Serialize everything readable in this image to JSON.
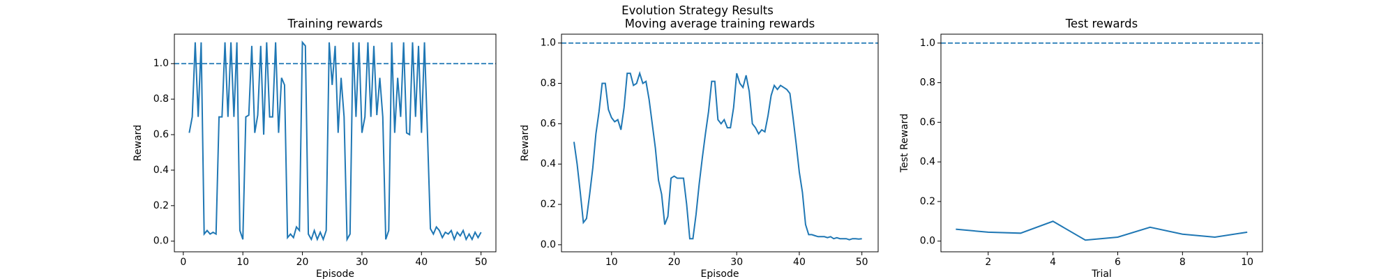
{
  "title": "Evolution Strategy Results",
  "chart_data": [
    {
      "type": "line",
      "title": "Training rewards",
      "xlabel": "Episode",
      "ylabel": "Reward",
      "color": "#1f77b4",
      "x": [
        1,
        1.5,
        2,
        2.5,
        3,
        3.5,
        4,
        4.5,
        5,
        5.5,
        6,
        6.5,
        7,
        7.5,
        8,
        8.5,
        9,
        9.5,
        10,
        10.5,
        11,
        11.5,
        12,
        12.5,
        13,
        13.5,
        14,
        14.5,
        15,
        15.5,
        16,
        16.5,
        17,
        17.5,
        18,
        18.5,
        19,
        19.5,
        20,
        20.5,
        21,
        21.5,
        22,
        22.5,
        23,
        23.5,
        24,
        24.5,
        25,
        25.5,
        26,
        26.5,
        27,
        27.5,
        28,
        28.5,
        29,
        29.5,
        30,
        30.5,
        31,
        31.5,
        32,
        32.5,
        33,
        33.5,
        34,
        34.5,
        35,
        35.5,
        36,
        36.5,
        37,
        37.5,
        38,
        38.5,
        39,
        39.5,
        40,
        40.5,
        41,
        41.5,
        42,
        42.5,
        43,
        43.5,
        44,
        44.5,
        45,
        45.5,
        46,
        46.5,
        47,
        47.5,
        48,
        48.5,
        49,
        49.5,
        50
      ],
      "values": [
        0.61,
        0.7,
        1.12,
        0.7,
        1.12,
        0.04,
        0.06,
        0.04,
        0.05,
        0.04,
        0.7,
        0.7,
        1.12,
        0.7,
        1.12,
        0.7,
        1.12,
        0.06,
        0.01,
        0.7,
        0.71,
        1.1,
        0.61,
        0.71,
        1.1,
        0.6,
        1.12,
        0.7,
        0.7,
        1.12,
        0.61,
        0.92,
        0.88,
        0.02,
        0.04,
        0.02,
        0.08,
        0.06,
        1.12,
        1.1,
        0.04,
        0.01,
        0.06,
        0.01,
        0.05,
        0.01,
        0.06,
        1.12,
        0.88,
        1.1,
        0.61,
        0.92,
        0.7,
        0.01,
        0.04,
        1.12,
        0.7,
        1.12,
        0.61,
        0.7,
        1.12,
        0.7,
        1.1,
        0.71,
        0.92,
        0.7,
        0.01,
        0.06,
        1.12,
        0.61,
        0.92,
        0.7,
        1.12,
        0.61,
        0.6,
        1.12,
        0.7,
        1.1,
        0.61,
        1.12,
        0.61,
        0.07,
        0.04,
        0.08,
        0.06,
        0.02,
        0.05,
        0.04,
        0.06,
        0.01,
        0.05,
        0.03,
        0.06,
        0.01,
        0.04,
        0.01,
        0.05,
        0.02,
        0.05
      ],
      "reference_line": 1.0,
      "reference_style": "dashed",
      "xlim": [
        -1.5,
        52.5
      ],
      "ylim": [
        -0.06,
        1.166
      ],
      "xticks": [
        0,
        10,
        20,
        30,
        40,
        50
      ],
      "yticks": [
        {
          "value": 0,
          "label": "0.0"
        },
        {
          "value": 0.2,
          "label": "0.2"
        },
        {
          "value": 0.4,
          "label": "0.4"
        },
        {
          "value": 0.6,
          "label": "0.6"
        },
        {
          "value": 0.8,
          "label": "0.8"
        },
        {
          "value": 1,
          "label": "1.0"
        }
      ]
    },
    {
      "type": "line",
      "title": "Moving average training rewards",
      "xlabel": "Episode",
      "ylabel": "Reward",
      "color": "#1f77b4",
      "x": [
        4,
        4.5,
        5,
        5.5,
        6,
        6.5,
        7,
        7.5,
        8,
        8.5,
        9,
        9.5,
        10,
        10.5,
        11,
        11.5,
        12,
        12.5,
        13,
        13.5,
        14,
        14.5,
        15,
        15.5,
        16,
        16.5,
        17,
        17.5,
        18,
        18.5,
        19,
        19.5,
        20,
        20.5,
        21,
        21.5,
        22,
        22.5,
        23,
        23.5,
        24,
        24.5,
        25,
        25.5,
        26,
        26.5,
        27,
        27.5,
        28,
        28.5,
        29,
        29.5,
        30,
        30.5,
        31,
        31.5,
        32,
        32.5,
        33,
        33.5,
        34,
        34.5,
        35,
        35.5,
        36,
        36.5,
        37,
        37.5,
        38,
        38.5,
        39,
        39.5,
        40,
        40.5,
        41,
        41.5,
        42,
        42.5,
        43,
        43.5,
        44,
        44.5,
        45,
        45.5,
        46,
        46.5,
        47,
        47.5,
        48,
        48.5,
        49,
        49.5,
        50
      ],
      "values": [
        0.51,
        0.4,
        0.26,
        0.11,
        0.13,
        0.25,
        0.38,
        0.55,
        0.66,
        0.8,
        0.8,
        0.67,
        0.63,
        0.61,
        0.62,
        0.57,
        0.68,
        0.85,
        0.85,
        0.79,
        0.8,
        0.85,
        0.8,
        0.81,
        0.72,
        0.6,
        0.48,
        0.32,
        0.25,
        0.1,
        0.14,
        0.33,
        0.34,
        0.33,
        0.33,
        0.33,
        0.2,
        0.03,
        0.03,
        0.15,
        0.3,
        0.43,
        0.55,
        0.66,
        0.81,
        0.81,
        0.62,
        0.6,
        0.62,
        0.58,
        0.58,
        0.68,
        0.85,
        0.8,
        0.78,
        0.84,
        0.76,
        0.6,
        0.58,
        0.55,
        0.57,
        0.56,
        0.64,
        0.74,
        0.79,
        0.77,
        0.79,
        0.78,
        0.77,
        0.75,
        0.63,
        0.5,
        0.36,
        0.26,
        0.1,
        0.05,
        0.05,
        0.045,
        0.04,
        0.04,
        0.04,
        0.035,
        0.04,
        0.03,
        0.035,
        0.03,
        0.03,
        0.03,
        0.025,
        0.03,
        0.03,
        0.028,
        0.03
      ],
      "reference_line": 1.0,
      "reference_style": "dashed",
      "xlim": [
        2,
        52.6
      ],
      "ylim": [
        -0.035,
        1.044
      ],
      "xticks": [
        10,
        20,
        30,
        40,
        50
      ],
      "yticks": [
        {
          "value": 0,
          "label": "0.0"
        },
        {
          "value": 0.2,
          "label": "0.2"
        },
        {
          "value": 0.4,
          "label": "0.4"
        },
        {
          "value": 0.6,
          "label": "0.6"
        },
        {
          "value": 0.8,
          "label": "0.8"
        },
        {
          "value": 1,
          "label": "1.0"
        }
      ]
    },
    {
      "type": "line",
      "title": "Test rewards",
      "xlabel": "Trial",
      "ylabel": "Test Reward",
      "color": "#1f77b4",
      "x": [
        1,
        2,
        3,
        4,
        5,
        6,
        7,
        8,
        9,
        10
      ],
      "values": [
        0.06,
        0.045,
        0.04,
        0.1,
        0.005,
        0.02,
        0.07,
        0.035,
        0.02,
        0.045
      ],
      "reference_line": 1.0,
      "reference_style": "dashed",
      "xlim": [
        0.54,
        10.47
      ],
      "ylim": [
        -0.054,
        1.045
      ],
      "xticks": [
        2,
        4,
        6,
        8,
        10
      ],
      "yticks": [
        {
          "value": 0,
          "label": "0.0"
        },
        {
          "value": 0.2,
          "label": "0.2"
        },
        {
          "value": 0.4,
          "label": "0.4"
        },
        {
          "value": 0.6,
          "label": "0.6"
        },
        {
          "value": 0.8,
          "label": "0.8"
        },
        {
          "value": 1,
          "label": "1.0"
        }
      ]
    }
  ]
}
